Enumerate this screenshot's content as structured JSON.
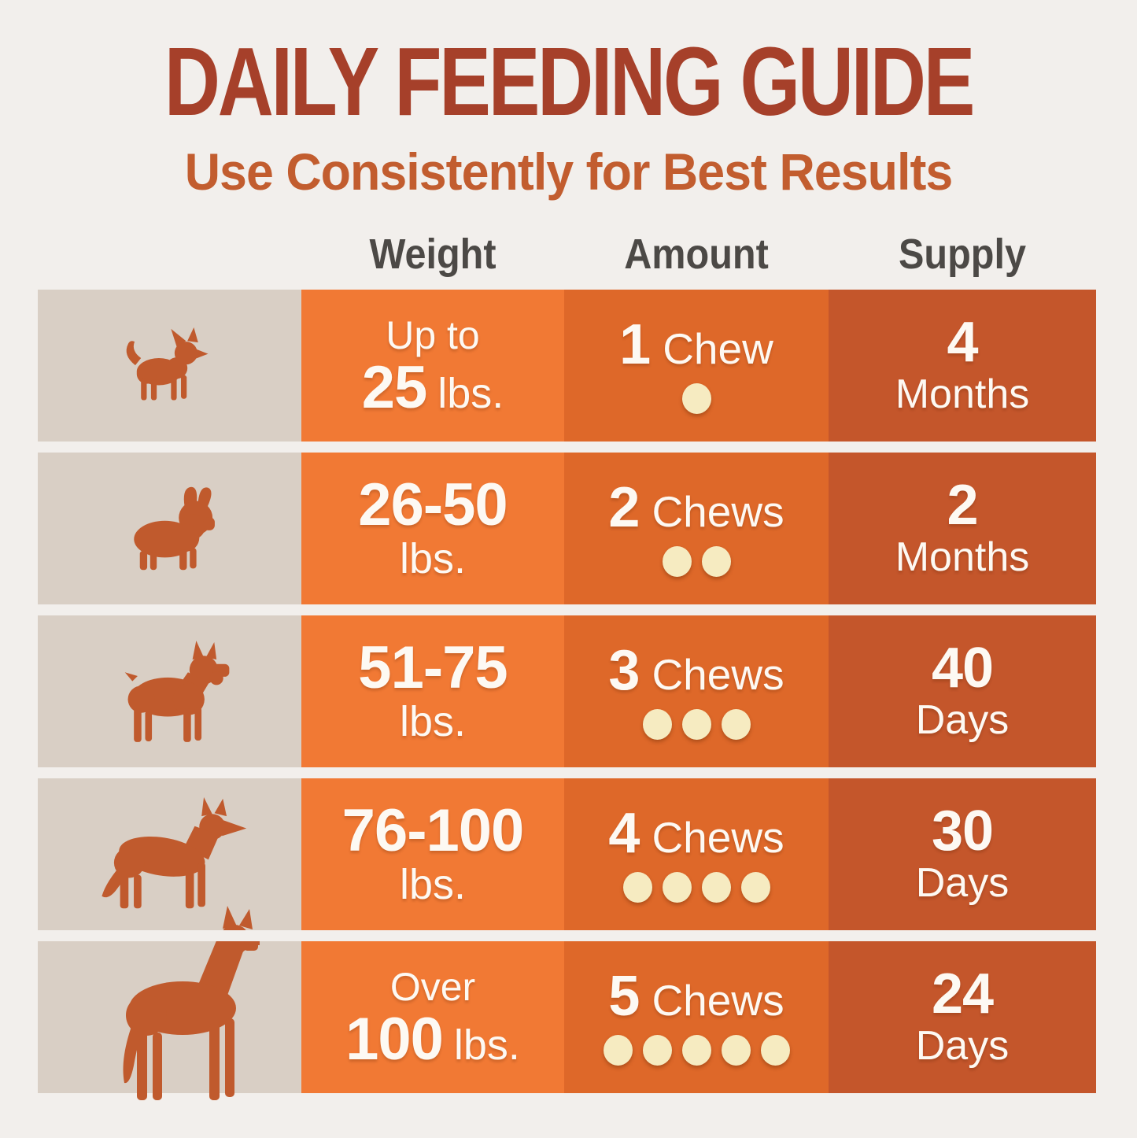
{
  "title": "DAILY FEEDING GUIDE",
  "subtitle": "Use Consistently for Best Results",
  "columns": {
    "weight": "Weight",
    "amount": "Amount",
    "supply": "Supply"
  },
  "colors": {
    "background": "#F2EFEC",
    "title": "#A6402A",
    "subtitle": "#C25D2F",
    "header_text": "#4C4946",
    "dog_cell": "#D9CFC5",
    "dog_silhouette": "#C05A2D",
    "weight_column": "#F17934",
    "amount_column": "#DE6829",
    "supply_column": "#C4562B",
    "chew_dot": "#F6EBC1",
    "cell_text": "#FDF9F3"
  },
  "rows": [
    {
      "dog": "chihuahua-icon",
      "weight": {
        "prefix": "Up to",
        "big": "25",
        "unit": "lbs."
      },
      "amount": {
        "count": "1",
        "label": "Chew",
        "dots": 1
      },
      "supply": {
        "value": "4",
        "unit": "Months"
      }
    },
    {
      "dog": "french-bulldog-icon",
      "weight": {
        "big": "26-50",
        "unit": "lbs."
      },
      "amount": {
        "count": "2",
        "label": "Chews",
        "dots": 2
      },
      "supply": {
        "value": "2",
        "unit": "Months"
      }
    },
    {
      "dog": "boxer-icon",
      "weight": {
        "big": "51-75",
        "unit": "lbs."
      },
      "amount": {
        "count": "3",
        "label": "Chews",
        "dots": 3
      },
      "supply": {
        "value": "40",
        "unit": "Days"
      }
    },
    {
      "dog": "german-shepherd-icon",
      "weight": {
        "big": "76-100",
        "unit": "lbs."
      },
      "amount": {
        "count": "4",
        "label": "Chews",
        "dots": 4
      },
      "supply": {
        "value": "30",
        "unit": "Days"
      }
    },
    {
      "dog": "great-dane-icon",
      "weight": {
        "prefix": "Over",
        "big": "100",
        "unit": "lbs."
      },
      "amount": {
        "count": "5",
        "label": "Chews",
        "dots": 5
      },
      "supply": {
        "value": "24",
        "unit": "Days"
      }
    }
  ],
  "chart_data": {
    "type": "table",
    "title": "DAILY FEEDING GUIDE",
    "subtitle": "Use Consistently for Best Results",
    "columns": [
      "Weight",
      "Amount",
      "Supply"
    ],
    "rows": [
      [
        "Up to 25 lbs.",
        "1 Chew",
        "4 Months"
      ],
      [
        "26-50 lbs.",
        "2 Chews",
        "2 Months"
      ],
      [
        "51-75 lbs.",
        "3 Chews",
        "40 Days"
      ],
      [
        "76-100 lbs.",
        "4 Chews",
        "30 Days"
      ],
      [
        "Over 100 lbs.",
        "5 Chews",
        "24 Days"
      ]
    ]
  }
}
